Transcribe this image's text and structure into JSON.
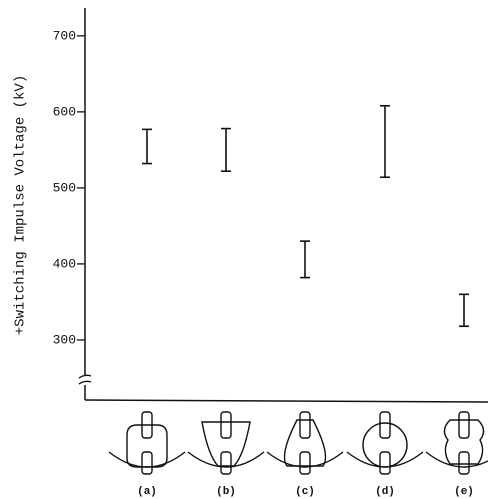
{
  "chart_data": {
    "type": "range",
    "ylabel": "+Switching Impulse Voltage (kV)",
    "categories": [
      "(a)",
      "(b)",
      "(c)",
      "(d)",
      "(e)"
    ],
    "low": [
      532,
      522,
      382,
      514,
      318
    ],
    "high": [
      577,
      578,
      430,
      608,
      360
    ],
    "color": "#111111",
    "ylim": [
      221,
      734
    ],
    "yticks": [
      300,
      400,
      500,
      600,
      700
    ],
    "grid": false
  }
}
